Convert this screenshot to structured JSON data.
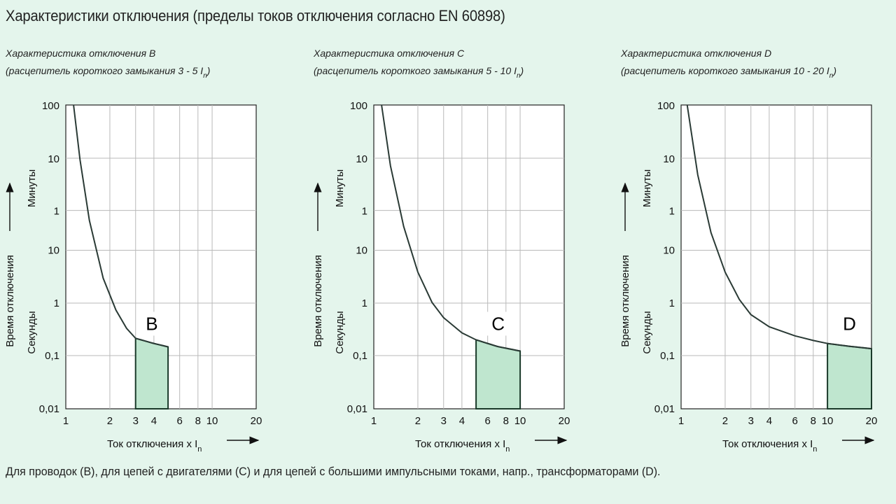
{
  "header": {
    "title": "Характеристики отключения (пределы токов отключения согласно EN 60898)"
  },
  "footer": {
    "note": "Для проводок (B), для цепей с двигателями (C) и для цепей с большими импульсными токами, напр., трансформаторами (D)."
  },
  "chart_data": [
    {
      "type": "line",
      "title": "Характеристика отключения B",
      "subtitle_prefix": "(расцепитель короткого замыкания 3 - 5 I",
      "subtitle_sub": "n",
      "subtitle_suffix": ")",
      "xlabel_prefix": "Ток отключения x I",
      "xlabel_sub": "n",
      "ylabel": "Время отключения",
      "ylabel_minutes": "Минуты",
      "ylabel_seconds": "Секунды",
      "xlim": [
        1,
        20
      ],
      "x_scale": "log",
      "x_ticks": [
        1,
        2,
        3,
        4,
        6,
        8,
        10,
        20
      ],
      "x_tick_labels": [
        "1",
        "2",
        "3",
        "4",
        "6",
        "8",
        "10",
        "20"
      ],
      "y_tick_labels_minutes": [
        "100",
        "10",
        "1"
      ],
      "y_tick_labels_seconds": [
        "10",
        "1",
        "0,1",
        "0,01"
      ],
      "grid": true,
      "curve_x": [
        1.13,
        1.25,
        1.45,
        1.8,
        2.2,
        2.6,
        3.0,
        4.0,
        5.0
      ],
      "curve_y_pos": [
        1.0,
        0.82,
        0.62,
        0.43,
        0.325,
        0.265,
        0.232,
        0.215,
        0.204
      ],
      "zone_label": "B",
      "zone_x": [
        3,
        5
      ]
    },
    {
      "type": "line",
      "title": "Характеристика отключения C",
      "subtitle_prefix": "(расцепитель короткого замыкания 5 - 10 I",
      "subtitle_sub": "n",
      "subtitle_suffix": ")",
      "xlabel_prefix": "Ток отключения x I",
      "xlabel_sub": "n",
      "ylabel": "Время отключения",
      "ylabel_minutes": "Минуты",
      "ylabel_seconds": "Секунды",
      "xlim": [
        1,
        20
      ],
      "x_scale": "log",
      "x_ticks": [
        1,
        2,
        3,
        4,
        6,
        8,
        10,
        20
      ],
      "x_tick_labels": [
        "1",
        "2",
        "3",
        "4",
        "6",
        "8",
        "10",
        "20"
      ],
      "y_tick_labels_minutes": [
        "100",
        "10",
        "1"
      ],
      "y_tick_labels_seconds": [
        "10",
        "1",
        "0,1",
        "0,01"
      ],
      "grid": true,
      "curve_x": [
        1.13,
        1.3,
        1.6,
        2.0,
        2.5,
        3.0,
        4.0,
        5.0,
        7.0,
        10.0
      ],
      "curve_y_pos": [
        1.0,
        0.8,
        0.6,
        0.45,
        0.35,
        0.3,
        0.25,
        0.227,
        0.205,
        0.19
      ],
      "zone_label": "C",
      "zone_x": [
        5,
        10
      ]
    },
    {
      "type": "line",
      "title": "Характеристика отключения D",
      "subtitle_prefix": "(расцепитель короткого замыкания 10 - 20 I",
      "subtitle_sub": "n",
      "subtitle_suffix": ")",
      "xlabel_prefix": "Ток отключения x I",
      "xlabel_sub": "n",
      "ylabel": "Время отключения",
      "ylabel_minutes": "Минуты",
      "ylabel_seconds": "Секунды",
      "xlim": [
        1,
        20
      ],
      "x_scale": "log",
      "x_ticks": [
        1,
        2,
        3,
        4,
        6,
        8,
        10,
        20
      ],
      "x_tick_labels": [
        "1",
        "2",
        "3",
        "4",
        "6",
        "8",
        "10",
        "20"
      ],
      "y_tick_labels_minutes": [
        "100",
        "10",
        "1"
      ],
      "y_tick_labels_seconds": [
        "10",
        "1",
        "0,1",
        "0,01"
      ],
      "grid": true,
      "curve_x": [
        1.1,
        1.3,
        1.6,
        2.0,
        2.5,
        3.0,
        4.0,
        6.0,
        8.0,
        10.0,
        14.0,
        20.0
      ],
      "curve_y_pos": [
        1.0,
        0.77,
        0.58,
        0.45,
        0.36,
        0.31,
        0.27,
        0.24,
        0.225,
        0.215,
        0.206,
        0.198
      ],
      "zone_label": "D",
      "zone_x": [
        10,
        20
      ]
    }
  ]
}
